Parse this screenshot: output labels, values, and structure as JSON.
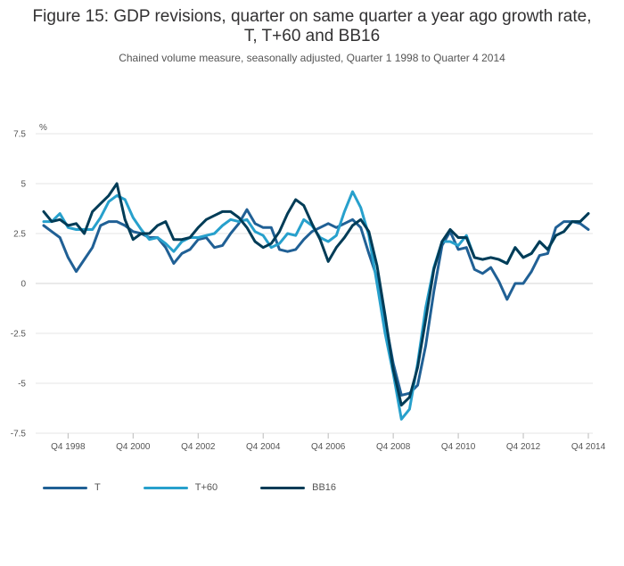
{
  "chart_data": {
    "type": "line",
    "title_lines": [
      "Figure 15: GDP revisions, quarter on same quarter a year ago growth rate,",
      "T, T+60 and BB16"
    ],
    "subtitle": "Chained volume measure, seasonally adjusted, Quarter 1 1998 to Quarter 4 2014",
    "ylabel": "%",
    "xlabel": "",
    "ylim": [
      -7.5,
      7.5
    ],
    "yticks": [
      7.5,
      5,
      2.5,
      0,
      -2.5,
      -5,
      -7.5
    ],
    "ytick_labels": [
      "7.5",
      "5",
      "2.5",
      "0",
      "-2.5",
      "-5",
      "-7.5"
    ],
    "x_start_label": "Q1 1998",
    "xtick_indices": [
      3,
      11,
      19,
      27,
      35,
      43,
      51,
      59,
      67
    ],
    "xtick_labels": [
      "Q4 1998",
      "Q4 2000",
      "Q4 2002",
      "Q4 2004",
      "Q4 2006",
      "Q4 2008",
      "Q4 2010",
      "Q4 2012",
      "Q4 2014"
    ],
    "grid": true,
    "legend_position": "bottom-left",
    "series": [
      {
        "name": "T",
        "color": "#206095",
        "values": [
          2.9,
          2.6,
          2.3,
          1.3,
          0.6,
          1.2,
          1.8,
          2.9,
          3.1,
          3.1,
          2.9,
          2.6,
          2.5,
          2.3,
          2.3,
          1.8,
          1.0,
          1.5,
          1.7,
          2.2,
          2.3,
          1.8,
          1.9,
          2.5,
          3.0,
          3.7,
          3.0,
          2.8,
          2.8,
          1.7,
          1.6,
          1.7,
          2.2,
          2.6,
          2.8,
          3.0,
          2.8,
          3.0,
          3.2,
          2.8,
          1.5,
          0.3,
          -1.8,
          -4.0,
          -5.6,
          -5.5,
          -5.1,
          -3.1,
          -0.4,
          1.9,
          2.6,
          1.7,
          1.8,
          0.7,
          0.5,
          0.8,
          0.1,
          -0.8,
          0.0,
          0.0,
          0.6,
          1.4,
          1.5,
          2.8,
          3.1,
          3.1,
          3.0,
          2.7
        ]
      },
      {
        "name": "T+60",
        "color": "#27A0CC",
        "values": [
          3.1,
          3.1,
          3.5,
          2.8,
          2.7,
          2.7,
          2.7,
          3.3,
          4.1,
          4.4,
          4.2,
          3.3,
          2.7,
          2.2,
          2.3,
          2.0,
          1.6,
          2.1,
          2.3,
          2.3,
          2.4,
          2.5,
          2.9,
          3.2,
          3.1,
          3.2,
          2.6,
          2.4,
          1.8,
          2.0,
          2.5,
          2.4,
          3.2,
          2.9,
          2.3,
          2.1,
          2.4,
          3.6,
          4.6,
          3.8,
          2.4,
          0.0,
          -2.5,
          -4.5,
          -6.8,
          -6.3,
          -4.0,
          -1.2,
          0.8,
          2.1,
          2.1,
          1.9,
          2.4,
          1.3,
          1.2,
          1.3,
          1.2,
          1.0,
          1.8,
          1.3,
          1.5,
          2.1,
          1.7,
          2.4,
          2.6,
          3.1,
          3.1,
          3.5
        ]
      },
      {
        "name": "BB16",
        "color": "#003C57",
        "values": [
          3.6,
          3.1,
          3.2,
          2.9,
          3.0,
          2.5,
          3.6,
          4.0,
          4.4,
          5.0,
          3.2,
          2.2,
          2.5,
          2.5,
          2.9,
          3.1,
          2.2,
          2.2,
          2.3,
          2.8,
          3.2,
          3.4,
          3.6,
          3.6,
          3.3,
          2.8,
          2.1,
          1.8,
          2.0,
          2.6,
          3.5,
          4.2,
          3.9,
          3.0,
          2.2,
          1.1,
          1.8,
          2.3,
          2.9,
          3.2,
          2.6,
          0.9,
          -1.6,
          -4.3,
          -6.1,
          -5.7,
          -4.2,
          -1.8,
          0.7,
          2.1,
          2.7,
          2.3,
          2.3,
          1.3,
          1.2,
          1.3,
          1.2,
          1.0,
          1.8,
          1.3,
          1.5,
          2.1,
          1.7,
          2.4,
          2.6,
          3.1,
          3.1,
          3.5
        ]
      }
    ]
  }
}
